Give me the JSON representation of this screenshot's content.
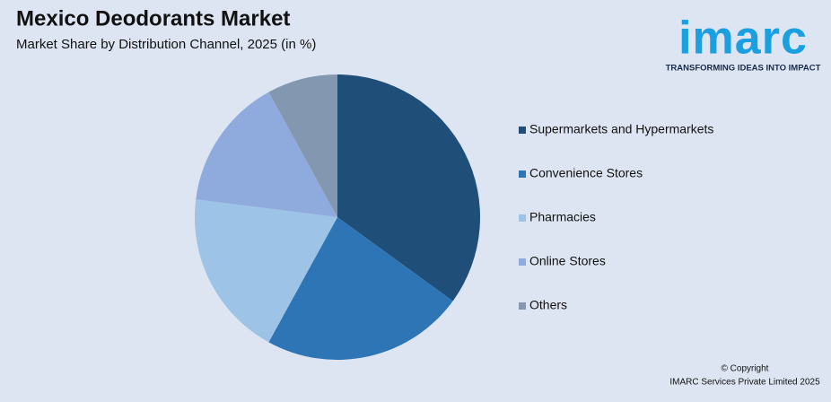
{
  "chart_data": {
    "type": "pie",
    "title": "Mexico Deodorants Market",
    "subtitle": "Market Share by Distribution Channel, 2025 (in %)",
    "categories": [
      "Supermarkets and Hypermarkets",
      "Convenience Stores",
      "Pharmacies",
      "Online Stores",
      "Others"
    ],
    "values": [
      35,
      23,
      19,
      15,
      8
    ],
    "colors": [
      "#1f4e79",
      "#2e75b6",
      "#9dc3e6",
      "#8faadc",
      "#8497b0"
    ],
    "legend": "right"
  },
  "logo": {
    "name": "imarc",
    "tagline": "TRANSFORMING IDEAS INTO IMPACT"
  },
  "footer": {
    "copyright": "© Copyright",
    "company": "IMARC Services Private Limited 2025"
  }
}
